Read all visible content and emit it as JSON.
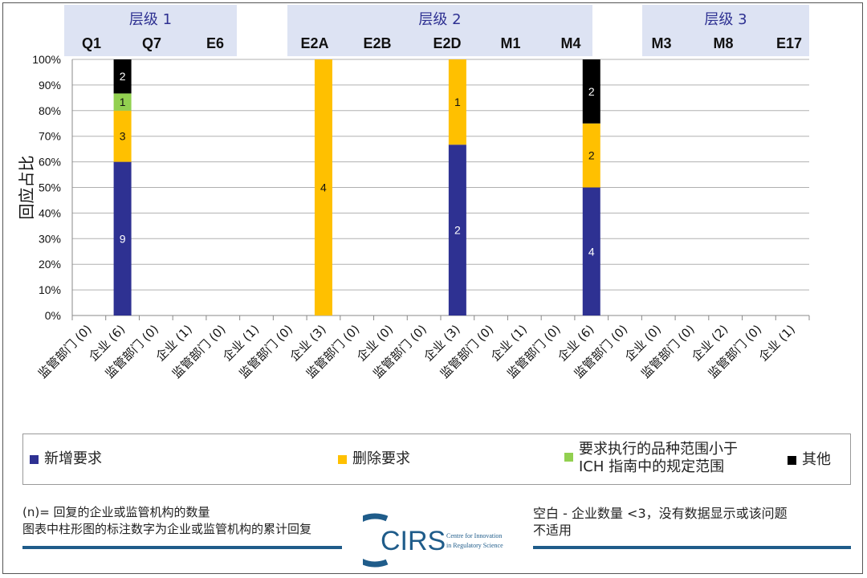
{
  "chart_data": {
    "type": "bar",
    "stacked": true,
    "ylabel": "回应占比",
    "ylim": [
      0,
      100
    ],
    "y_ticks": [
      "0%",
      "10%",
      "20%",
      "30%",
      "40%",
      "50%",
      "60%",
      "70%",
      "80%",
      "90%",
      "100%"
    ],
    "grid": true,
    "groups": [
      {
        "label": "层级 1",
        "guidelines": [
          "Q1",
          "Q7",
          "E6"
        ]
      },
      {
        "label": "层级 2",
        "guidelines": [
          "E2A",
          "E2B",
          "E2D",
          "M1",
          "M4"
        ]
      },
      {
        "label": "层级 3",
        "guidelines": [
          "M3",
          "M8",
          "E17"
        ]
      }
    ],
    "categories": [
      "监管部门 (0)",
      "企业 (6)",
      "监管部门 (0)",
      "企业 (1)",
      "监管部门 (0)",
      "企业 (1)",
      "监管部门 (0)",
      "企业 (3)",
      "监管部门 (0)",
      "企业 (0)",
      "监管部门 (0)",
      "企业 (3)",
      "监管部门 (0)",
      "企业 (1)",
      "监管部门 (0)",
      "企业 (6)",
      "监管部门 (0)",
      "企业 (0)",
      "监管部门 (0)",
      "企业 (2)",
      "监管部门 (0)",
      "企业 (1)"
    ],
    "series": [
      {
        "name": "新增要求",
        "color": "#2e3192",
        "values": [
          0,
          60,
          0,
          0,
          0,
          0,
          0,
          0,
          0,
          0,
          0,
          66.7,
          0,
          0,
          0,
          50,
          0,
          0,
          0,
          0,
          0,
          0
        ],
        "counts": [
          0,
          9,
          0,
          0,
          0,
          0,
          0,
          0,
          0,
          0,
          0,
          2,
          0,
          0,
          0,
          4,
          0,
          0,
          0,
          0,
          0,
          0
        ]
      },
      {
        "name": "删除要求",
        "color": "#ffc000",
        "values": [
          0,
          20,
          0,
          0,
          0,
          0,
          0,
          100,
          0,
          0,
          0,
          33.3,
          0,
          0,
          0,
          25,
          0,
          0,
          0,
          0,
          0,
          0
        ],
        "counts": [
          0,
          3,
          0,
          0,
          0,
          0,
          0,
          4,
          0,
          0,
          0,
          1,
          0,
          0,
          0,
          2,
          0,
          0,
          0,
          0,
          0,
          0
        ]
      },
      {
        "name": "要求执行的品种范围小于\nICH 指南中的规定范围",
        "color": "#92d050",
        "values": [
          0,
          6.7,
          0,
          0,
          0,
          0,
          0,
          0,
          0,
          0,
          0,
          0,
          0,
          0,
          0,
          0,
          0,
          0,
          0,
          0,
          0,
          0
        ],
        "counts": [
          0,
          1,
          0,
          0,
          0,
          0,
          0,
          0,
          0,
          0,
          0,
          0,
          0,
          0,
          0,
          0,
          0,
          0,
          0,
          0,
          0,
          0
        ]
      },
      {
        "name": "其他",
        "color": "#000000",
        "values": [
          0,
          13.3,
          0,
          0,
          0,
          0,
          0,
          0,
          0,
          0,
          0,
          0,
          0,
          0,
          0,
          25,
          0,
          0,
          0,
          0,
          0,
          0
        ],
        "counts": [
          0,
          2,
          0,
          0,
          0,
          0,
          0,
          0,
          0,
          0,
          0,
          0,
          0,
          0,
          0,
          2,
          0,
          0,
          0,
          0,
          0,
          0
        ]
      }
    ]
  },
  "legend": {
    "new_req": "新增要求",
    "delete_req": "删除要求",
    "scope_line1": "要求执行的品种范围小于",
    "scope_line2": "ICH 指南中的规定范围",
    "other": "其他"
  },
  "footer": {
    "note_line1": "(n)= 回复的企业或监管机构的数量",
    "note_line2": "图表中柱形图的标注数字为企业或监管机构的累计回复",
    "blank_line1": "空白 - 企业数量 <3，没有数据显示或该问题",
    "blank_line2": "不适用",
    "logo_text": "CIRS",
    "logo_sub1": "Centre for Innovation",
    "logo_sub2": "in Regulatory Science"
  }
}
